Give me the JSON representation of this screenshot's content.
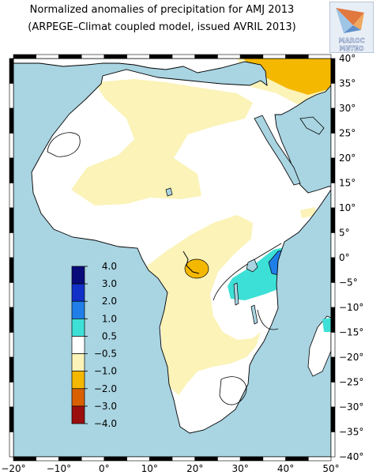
{
  "title": {
    "line1": "Normalized anomalies of precipitation for AMJ 2013",
    "line2": "(ARPEGE–Climat coupled model, issued AVRIL 2013)"
  },
  "logo": {
    "line1": "MAROC",
    "line2": "METEO"
  },
  "colors": {
    "ocean": "#a9d4e2",
    "land_neutral": "#ffffff",
    "dry_1": "#fbf3b8",
    "dry_2": "#f5b800",
    "dry_3": "#d86000",
    "dry_4": "#9a0e0e",
    "wet_1": "#3de0d6",
    "wet_2": "#1f7ee8",
    "wet_3": "#1030c8",
    "wet_4": "#080a7a"
  },
  "axes": {
    "x_labels": [
      "−20°",
      "−10°",
      "0°",
      "10°",
      "20°",
      "30°",
      "40°",
      "50°"
    ],
    "y_labels": [
      "40°",
      "35°",
      "30°",
      "25°",
      "20°",
      "15°",
      "10°",
      "5°",
      "0°",
      "−5°",
      "−10°",
      "−15°",
      "−20°",
      "−25°",
      "−30°",
      "−35°",
      "−40°"
    ]
  },
  "colorbar": {
    "labels": [
      "4.0",
      "3.0",
      "2.0",
      "1.0",
      "0.5",
      "−0.5",
      "−1.0",
      "−2.0",
      "−3.0",
      "−4.0"
    ],
    "bands": [
      "wet_4",
      "wet_3",
      "wet_2",
      "wet_1",
      "land_neutral",
      "dry_1",
      "dry_2",
      "dry_3",
      "dry_4"
    ]
  }
}
